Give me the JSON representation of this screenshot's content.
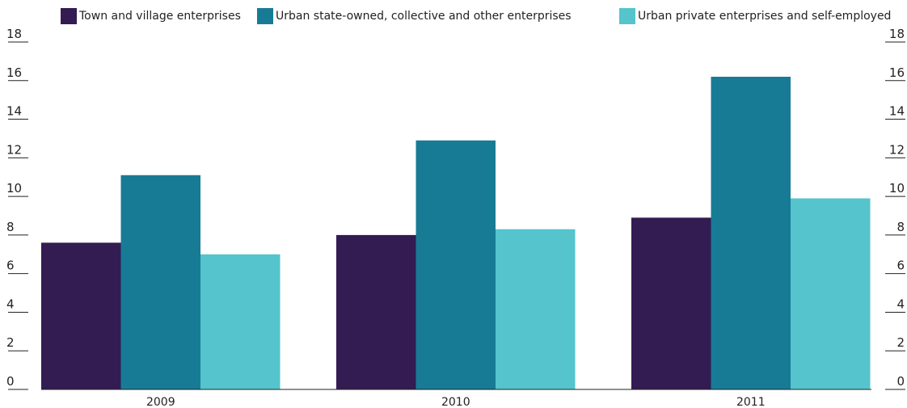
{
  "chart_data": {
    "type": "bar",
    "title": "",
    "xlabel": "",
    "ylabel": "",
    "categories": [
      "2009",
      "2010",
      "2011"
    ],
    "series": [
      {
        "name": "Town and village enterprises",
        "color": "#321c51",
        "values": [
          7.6,
          8.0,
          8.9
        ]
      },
      {
        "name": "Urban state-owned, collective and other enterprises",
        "color": "#187b96",
        "values": [
          11.1,
          12.9,
          16.2
        ]
      },
      {
        "name": "Urban private enterprises and self-employed",
        "color": "#55c4cc",
        "values": [
          7.0,
          8.3,
          9.9
        ]
      }
    ],
    "ylim": [
      0,
      18
    ],
    "yticks": [
      0,
      2,
      4,
      6,
      8,
      10,
      12,
      14,
      16,
      18
    ],
    "y_axis_sides": [
      "left",
      "right"
    ],
    "legend_position": "top",
    "grid": false
  }
}
